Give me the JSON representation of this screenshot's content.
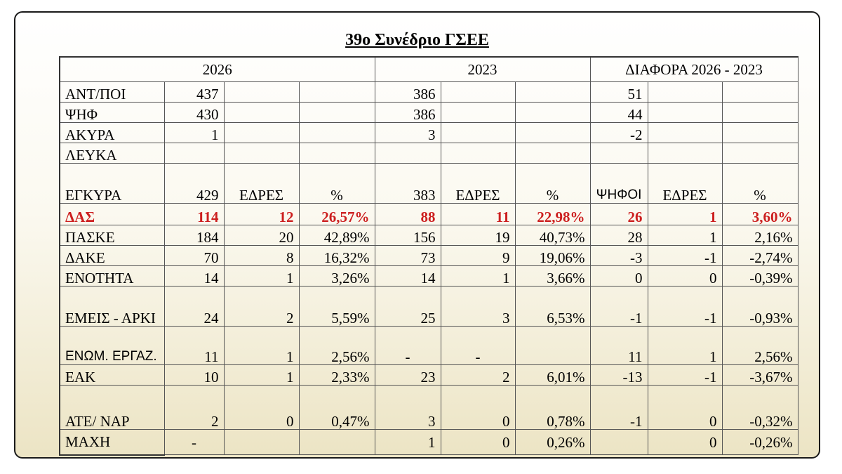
{
  "title": "39ο Συνέδριο ΓΣΕΕ",
  "headers": {
    "y2026": "2026",
    "y2023": "2023",
    "diff": "ΔΙΑΦΟΡΑ 2026 - 2023"
  },
  "colors": {
    "highlight": "#cc1f1f",
    "border": "#1a1a1a"
  },
  "summary": [
    {
      "label": "ΑΝΤ/ΠΟΙ",
      "v2026": "437",
      "v2023": "386",
      "diff": "51"
    },
    {
      "label": "ΨΗΦ",
      "v2026": "430",
      "v2023": "386",
      "diff": "44"
    },
    {
      "label": "ΑΚΥΡΑ",
      "v2026": "1",
      "v2023": "3",
      "diff": "-2"
    },
    {
      "label": "ΛΕΥΚΑ",
      "v2026": "",
      "v2023": "",
      "diff": ""
    }
  ],
  "valid": {
    "label": "ΕΓΚΥΡΑ",
    "v2026": "429",
    "seats2026": "ΕΔΡΕΣ",
    "pct2026": "%",
    "v2023": "383",
    "seats2023": "ΕΔΡΕΣ",
    "pct2023": "%",
    "votesDiff": "ΨΗΦΟΙ",
    "seatsDiff": "ΕΔΡΕΣ",
    "pctDiff": "%"
  },
  "parties": [
    {
      "name": "ΔΑΣ",
      "v26": "114",
      "s26": "12",
      "p26": "26,57%",
      "v23": "88",
      "s23": "11",
      "p23": "22,98%",
      "dv": "26",
      "ds": "1",
      "dp": "3,60%"
    },
    {
      "name": "ΠΑΣΚΕ",
      "v26": "184",
      "s26": "20",
      "p26": "42,89%",
      "v23": "156",
      "s23": "19",
      "p23": "40,73%",
      "dv": "28",
      "ds": "1",
      "dp": "2,16%"
    },
    {
      "name": "ΔΑΚΕ",
      "v26": "70",
      "s26": "8",
      "p26": "16,32%",
      "v23": "73",
      "s23": "9",
      "p23": "19,06%",
      "dv": "-3",
      "ds": "-1",
      "dp": "-2,74%"
    },
    {
      "name": "ΕΝΟΤΗΤΑ",
      "v26": "14",
      "s26": "1",
      "p26": "3,26%",
      "v23": "14",
      "s23": "1",
      "p23": "3,66%",
      "dv": "0",
      "ds": "0",
      "dp": "-0,39%"
    },
    {
      "name": "ΕΜΕΙΣ - ΑΡΚΙ",
      "v26": "24",
      "s26": "2",
      "p26": "5,59%",
      "v23": "25",
      "s23": "3",
      "p23": "6,53%",
      "dv": "-1",
      "ds": "-1",
      "dp": "-0,93%"
    },
    {
      "name": "ΕΝΩΜ. ΕΡΓΑΖ.",
      "v26": "11",
      "s26": "1",
      "p26": "2,56%",
      "v23": "-",
      "s23": "-",
      "p23": "",
      "dv": "11",
      "ds": "1",
      "dp": "2,56%"
    },
    {
      "name": "ΕΑΚ",
      "v26": "10",
      "s26": "1",
      "p26": "2,33%",
      "v23": "23",
      "s23": "2",
      "p23": "6,01%",
      "dv": "-13",
      "ds": "-1",
      "dp": "-3,67%"
    },
    {
      "name": "ΑΤΕ/ ΝΑΡ",
      "v26": "2",
      "s26": "0",
      "p26": "0,47%",
      "v23": "3",
      "s23": "0",
      "p23": "0,78%",
      "dv": "-1",
      "ds": "0",
      "dp": "-0,32%"
    },
    {
      "name": "ΜΑΧΗ",
      "v26": "-",
      "s26": "",
      "p26": "",
      "v23": "1",
      "s23": "0",
      "p23": "0,26%",
      "dv": "",
      "ds": "0",
      "dp": "-0,26%"
    }
  ]
}
